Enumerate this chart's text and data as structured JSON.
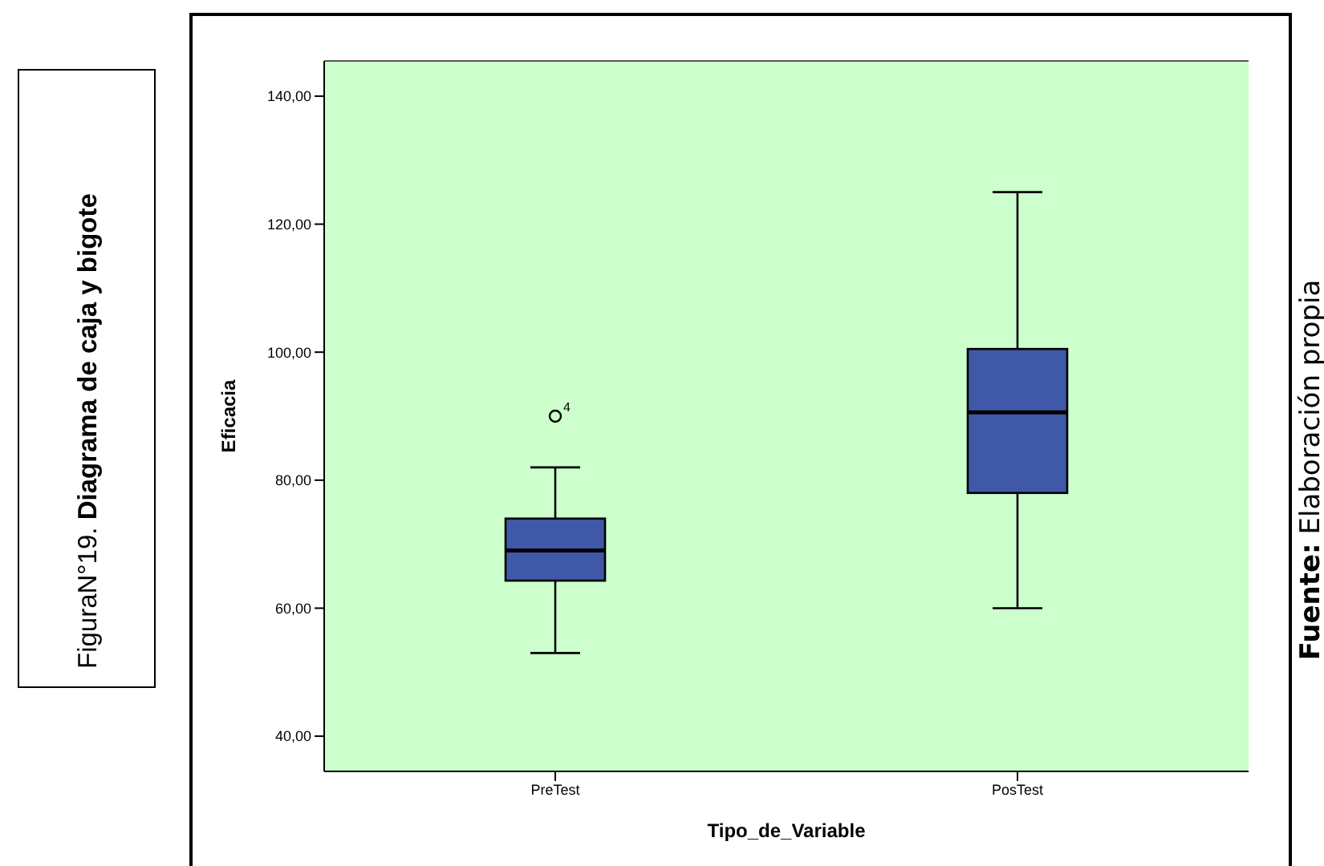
{
  "chart_data": {
    "type": "box",
    "title": "Diagrama de caja y bigote",
    "subtitle": "FiguraN°19.",
    "xlabel": "Tipo_de_Variable",
    "ylabel": "Eficacia",
    "categories": [
      "PreTest",
      "PosTest"
    ],
    "color": "#3f58a8",
    "boxes": [
      {
        "low": 53,
        "q1": 64.3,
        "median": 69,
        "q3": 74,
        "high": 82,
        "outliers": [
          90
        ]
      },
      {
        "low": 60,
        "q1": 78,
        "median": 90.6,
        "q3": 100.5,
        "high": 125
      }
    ],
    "ylim": [
      34.5,
      145.5
    ],
    "yticks": [
      {
        "value": 40,
        "label": "40,00"
      },
      {
        "value": 60,
        "label": "60,00"
      },
      {
        "value": 80,
        "label": "80,00"
      },
      {
        "value": 100,
        "label": "100,00"
      },
      {
        "value": 120,
        "label": "120,00"
      },
      {
        "value": 140,
        "label": "140,00"
      }
    ],
    "annotations": [
      "4",
      "Fuente: Elaboración propia"
    ],
    "grid": false,
    "legend": false
  }
}
